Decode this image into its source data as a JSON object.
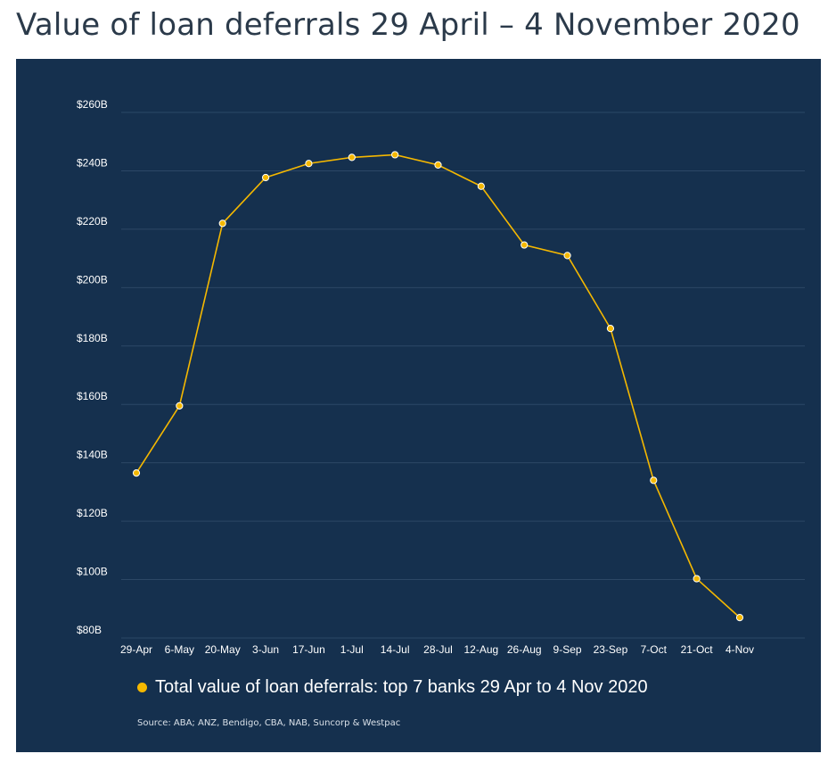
{
  "page": {
    "title": "Value of loan deferrals 29 April – 4 November 2020"
  },
  "colors": {
    "panel_background": "#15304e",
    "series": "#f5b800",
    "gridline": "#2c4766",
    "text": "#ffffff"
  },
  "chart_data": {
    "type": "line",
    "title": "Value of loan deferrals 29 April – 4 November 2020",
    "xlabel": "",
    "ylabel": "",
    "categories": [
      "29-Apr",
      "6-May",
      "20-May",
      "3-Jun",
      "17-Jun",
      "1-Jul",
      "14-Jul",
      "28-Jul",
      "12-Aug",
      "26-Aug",
      "9-Sep",
      "23-Sep",
      "7-Oct",
      "21-Oct",
      "4-Nov"
    ],
    "series": [
      {
        "name": "Total value of loan deferrals: top 7 banks 29 Apr to 4 Nov 2020",
        "values": [
          136.5,
          159.5,
          222,
          237.7,
          242.5,
          244.6,
          245.5,
          242,
          234.7,
          214.6,
          211,
          186,
          134,
          100.3,
          87
        ]
      }
    ],
    "yticks": [
      80,
      100,
      120,
      140,
      160,
      180,
      200,
      220,
      240,
      260
    ],
    "ytick_labels": [
      "$80B",
      "$100B",
      "$120B",
      "$140B",
      "$160B",
      "$180B",
      "$200B",
      "$220B",
      "$240B",
      "$260B"
    ],
    "ylim": [
      80,
      260
    ],
    "grid": true,
    "legend_position": "bottom",
    "source": "Source: ABA; ANZ, Bendigo, CBA, NAB, Suncorp & Westpac"
  }
}
